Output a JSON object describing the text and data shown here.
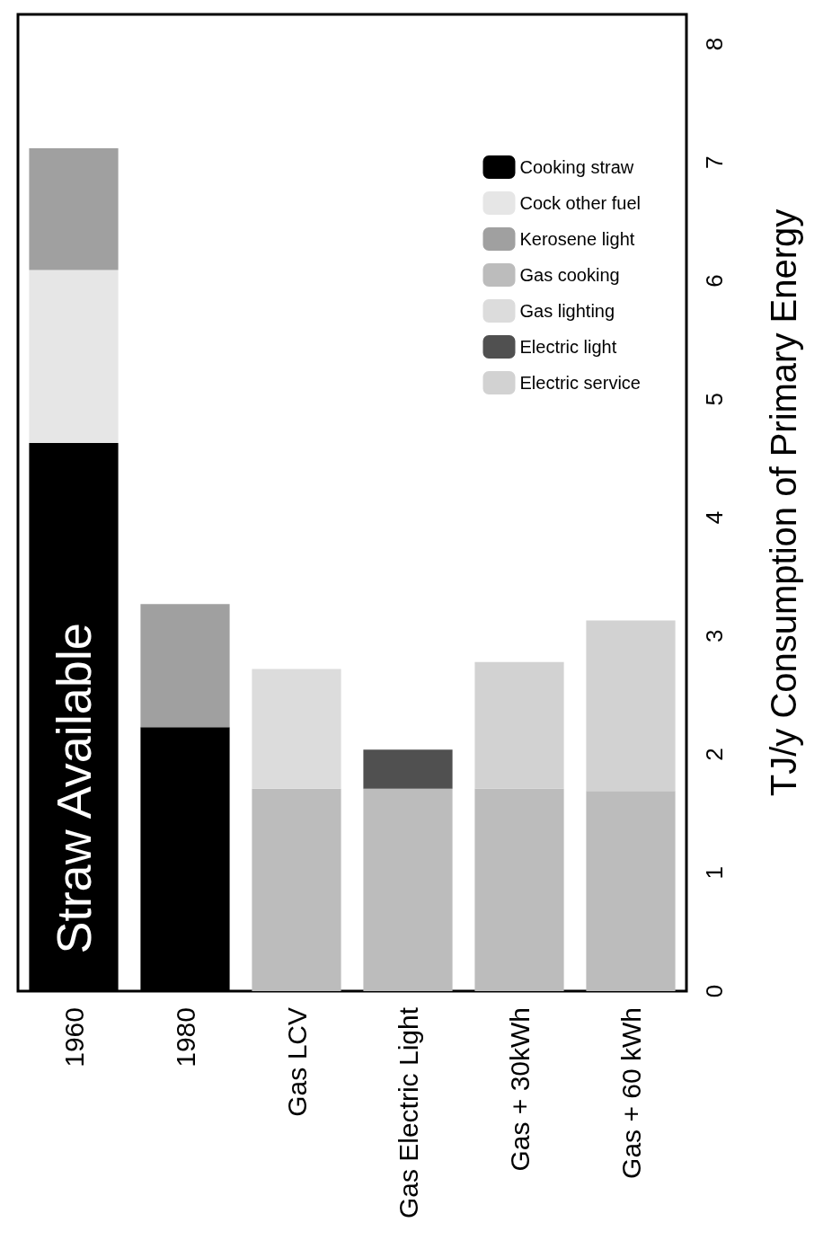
{
  "chart_data": {
    "type": "bar",
    "stacked": true,
    "ylabel": "TJ/y Consumption of Primary Energy",
    "categories": [
      "1960",
      "1980",
      "Gas LCV",
      "Gas Electric Light",
      "Gas + 30kWh",
      "Gas + 60 kWh"
    ],
    "series": [
      {
        "name": "Cooking straw",
        "color": "#000000",
        "values": [
          4.63,
          2.23,
          null,
          null,
          null,
          null
        ]
      },
      {
        "name": "Cock other fuel",
        "color": "#e6e6e6",
        "values": [
          1.46,
          null,
          null,
          null,
          null,
          null
        ]
      },
      {
        "name": "Kerosene light",
        "color": "#a0a0a0",
        "values": [
          1.03,
          1.04,
          null,
          null,
          null,
          null
        ]
      },
      {
        "name": "Gas cooking",
        "color": "#bcbcbc",
        "values": [
          null,
          null,
          1.71,
          1.71,
          1.71,
          1.69
        ]
      },
      {
        "name": "Gas lighting",
        "color": "#dcdcdc",
        "values": [
          null,
          null,
          1.01,
          null,
          null,
          null
        ]
      },
      {
        "name": "Electric light",
        "color": "#505050",
        "values": [
          null,
          null,
          null,
          0.33,
          null,
          null
        ]
      },
      {
        "name": "Electric service",
        "color": "#d2d2d2",
        "values": [
          null,
          null,
          null,
          null,
          1.07,
          1.44
        ]
      }
    ],
    "ylim": [
      0,
      8.25
    ],
    "yticks": [
      0,
      1,
      2,
      3,
      4,
      5,
      6,
      7,
      8
    ],
    "grid": false,
    "legend": "top right",
    "annotations": [
      "Straw Available"
    ]
  }
}
